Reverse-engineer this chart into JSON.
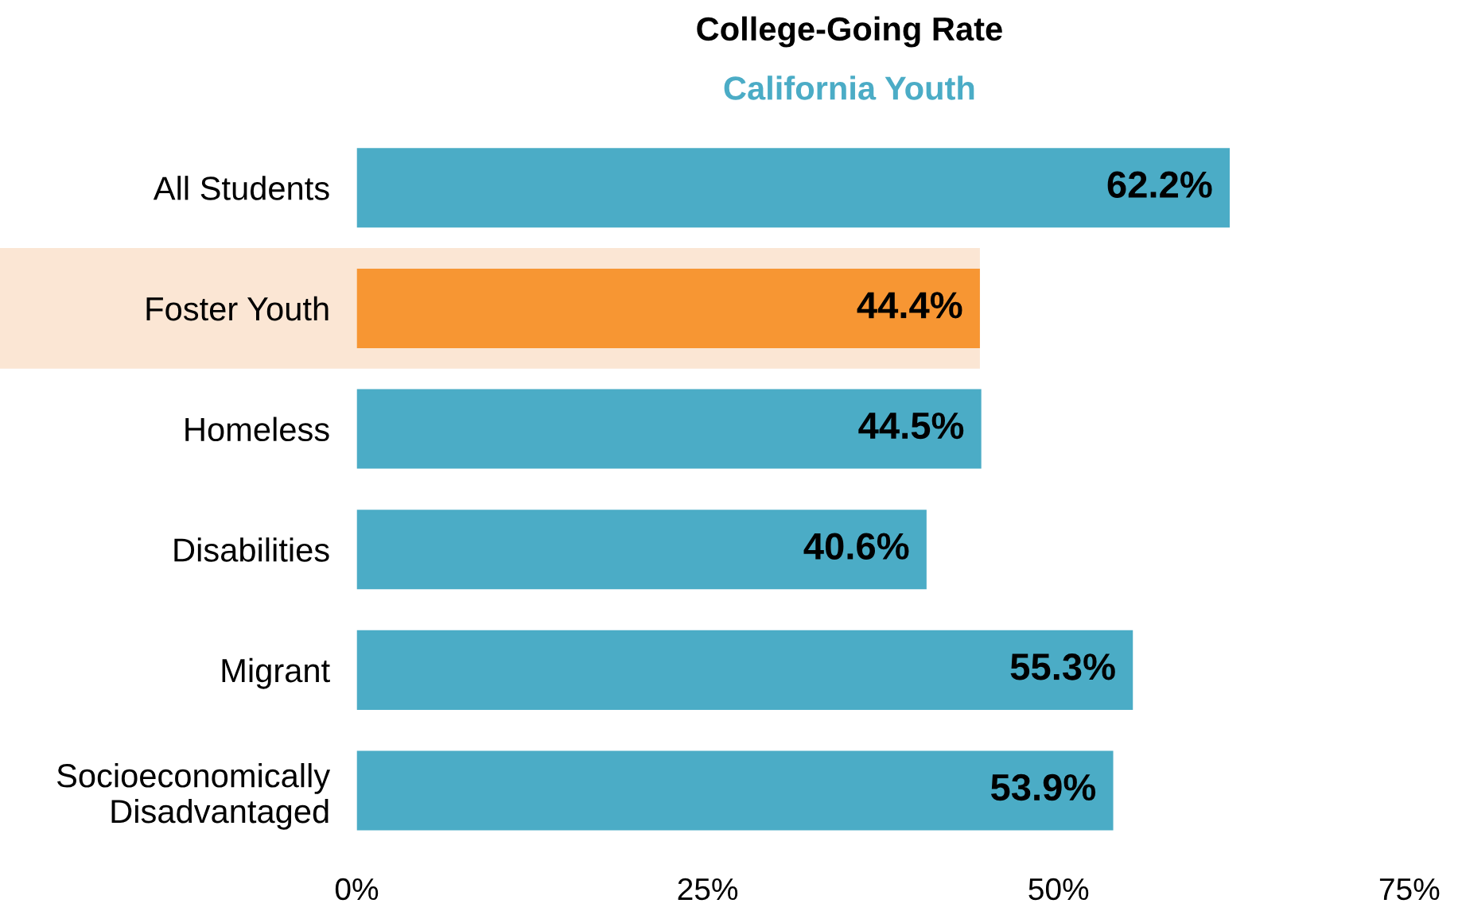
{
  "chart_data": {
    "type": "bar",
    "orientation": "horizontal",
    "title": "College-Going Rate",
    "subtitle": "California Youth",
    "categories": [
      "All Students",
      "Foster Youth",
      "Homeless",
      "Disabilities",
      "Migrant",
      "Socioeconomically\nDisadvantaged"
    ],
    "values": [
      62.2,
      44.4,
      44.5,
      40.6,
      55.3,
      53.9
    ],
    "colors": [
      "#4bacc6",
      "#f79633",
      "#4bacc6",
      "#4bacc6",
      "#4bacc6",
      "#4bacc6"
    ],
    "value_labels": [
      "62.2%",
      "44.4%",
      "44.5%",
      "40.6%",
      "55.3%",
      "53.9%"
    ],
    "xlim": [
      0,
      75
    ],
    "xticks": [
      {
        "value": 0,
        "label": "0%"
      },
      {
        "value": 25,
        "label": "25%"
      },
      {
        "value": 50,
        "label": "50%"
      },
      {
        "value": 75,
        "label": "75%"
      }
    ],
    "bands": [
      {
        "axis": "y",
        "from": "Foster Youth",
        "to": "Foster Youth",
        "color": "#fbe6d4"
      }
    ],
    "grid": false,
    "legend": false
  }
}
